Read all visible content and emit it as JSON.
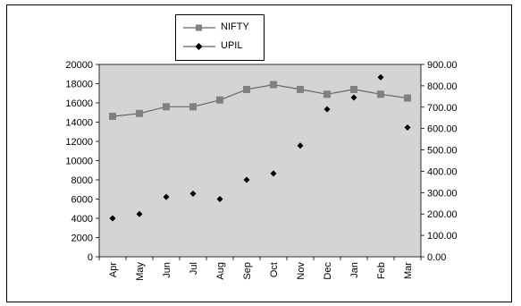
{
  "colors": {
    "plot_bg": "#d4d4d4",
    "nifty": "#666666",
    "nifty_marker": "#808080",
    "upil": "#000000"
  },
  "chart_data": {
    "type": "line",
    "categories": [
      "Apr",
      "May",
      "Jun",
      "Jul",
      "Aug",
      "Sep",
      "Oct",
      "Nov",
      "Dec",
      "Jan",
      "Feb",
      "Mar"
    ],
    "series": [
      {
        "name": "NIFTY",
        "axis": "left",
        "style": "line-with-square-markers",
        "values": [
          14600,
          14900,
          15600,
          15600,
          16300,
          17400,
          17900,
          17400,
          16900,
          17400,
          16900,
          16500
        ]
      },
      {
        "name": "UPIL",
        "axis": "right",
        "style": "diamond-markers",
        "values": [
          180,
          200,
          280,
          295,
          270,
          360,
          390,
          520,
          690,
          745,
          840,
          605
        ]
      }
    ],
    "y_left": {
      "min": 0,
      "max": 20000,
      "step": 2000,
      "tick_labels": [
        "0",
        "2000",
        "4000",
        "6000",
        "8000",
        "10000",
        "12000",
        "14000",
        "16000",
        "18000",
        "20000"
      ]
    },
    "y_right": {
      "min": 0,
      "max": 900,
      "step": 100,
      "tick_labels": [
        "0.00",
        "100.00",
        "200.00",
        "300.00",
        "400.00",
        "500.00",
        "600.00",
        "700.00",
        "800.00",
        "900.00"
      ]
    },
    "grid": false,
    "legend_position": "top-center",
    "title": "",
    "xlabel": "",
    "ylabel": ""
  }
}
